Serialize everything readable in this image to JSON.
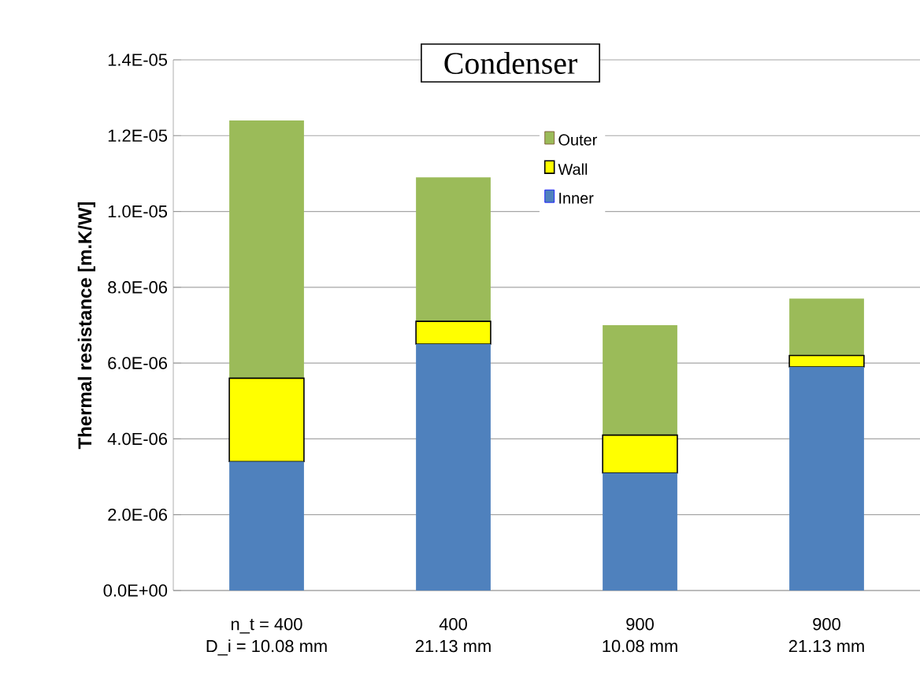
{
  "chart_data": {
    "type": "bar",
    "stacked": true,
    "title": "Condenser",
    "ylabel": "Thermal resistance [m.K/W]",
    "categories": [
      "n_t = 400\nD_i = 10.08 mm",
      "400\n21.13 mm",
      "900\n10.08 mm",
      "900\n21.13 mm"
    ],
    "series": [
      {
        "name": "Inner",
        "color": "#4f81bd",
        "values": [
          3.4e-06,
          6.5e-06,
          3.1e-06,
          5.9e-06
        ]
      },
      {
        "name": "Wall",
        "color": "#ffff00",
        "values": [
          2.2e-06,
          6e-07,
          1e-06,
          3e-07
        ]
      },
      {
        "name": "Outer",
        "color": "#9bbb59",
        "values": [
          6.8e-06,
          3.8e-06,
          2.9e-06,
          1.5e-06
        ]
      }
    ],
    "ylim": [
      0,
      1.4e-05
    ],
    "yticks": [
      {
        "value": 0,
        "label": "0.0E+00"
      },
      {
        "value": 2e-06,
        "label": "2.0E-06"
      },
      {
        "value": 4e-06,
        "label": "4.0E-06"
      },
      {
        "value": 6e-06,
        "label": "6.0E-06"
      },
      {
        "value": 8e-06,
        "label": "8.0E-06"
      },
      {
        "value": 1e-05,
        "label": "1.0E-05"
      },
      {
        "value": 1.2e-05,
        "label": "1.2E-05"
      },
      {
        "value": 1.4e-05,
        "label": "1.4E-05"
      }
    ],
    "grid": "y",
    "legend": "top right"
  }
}
